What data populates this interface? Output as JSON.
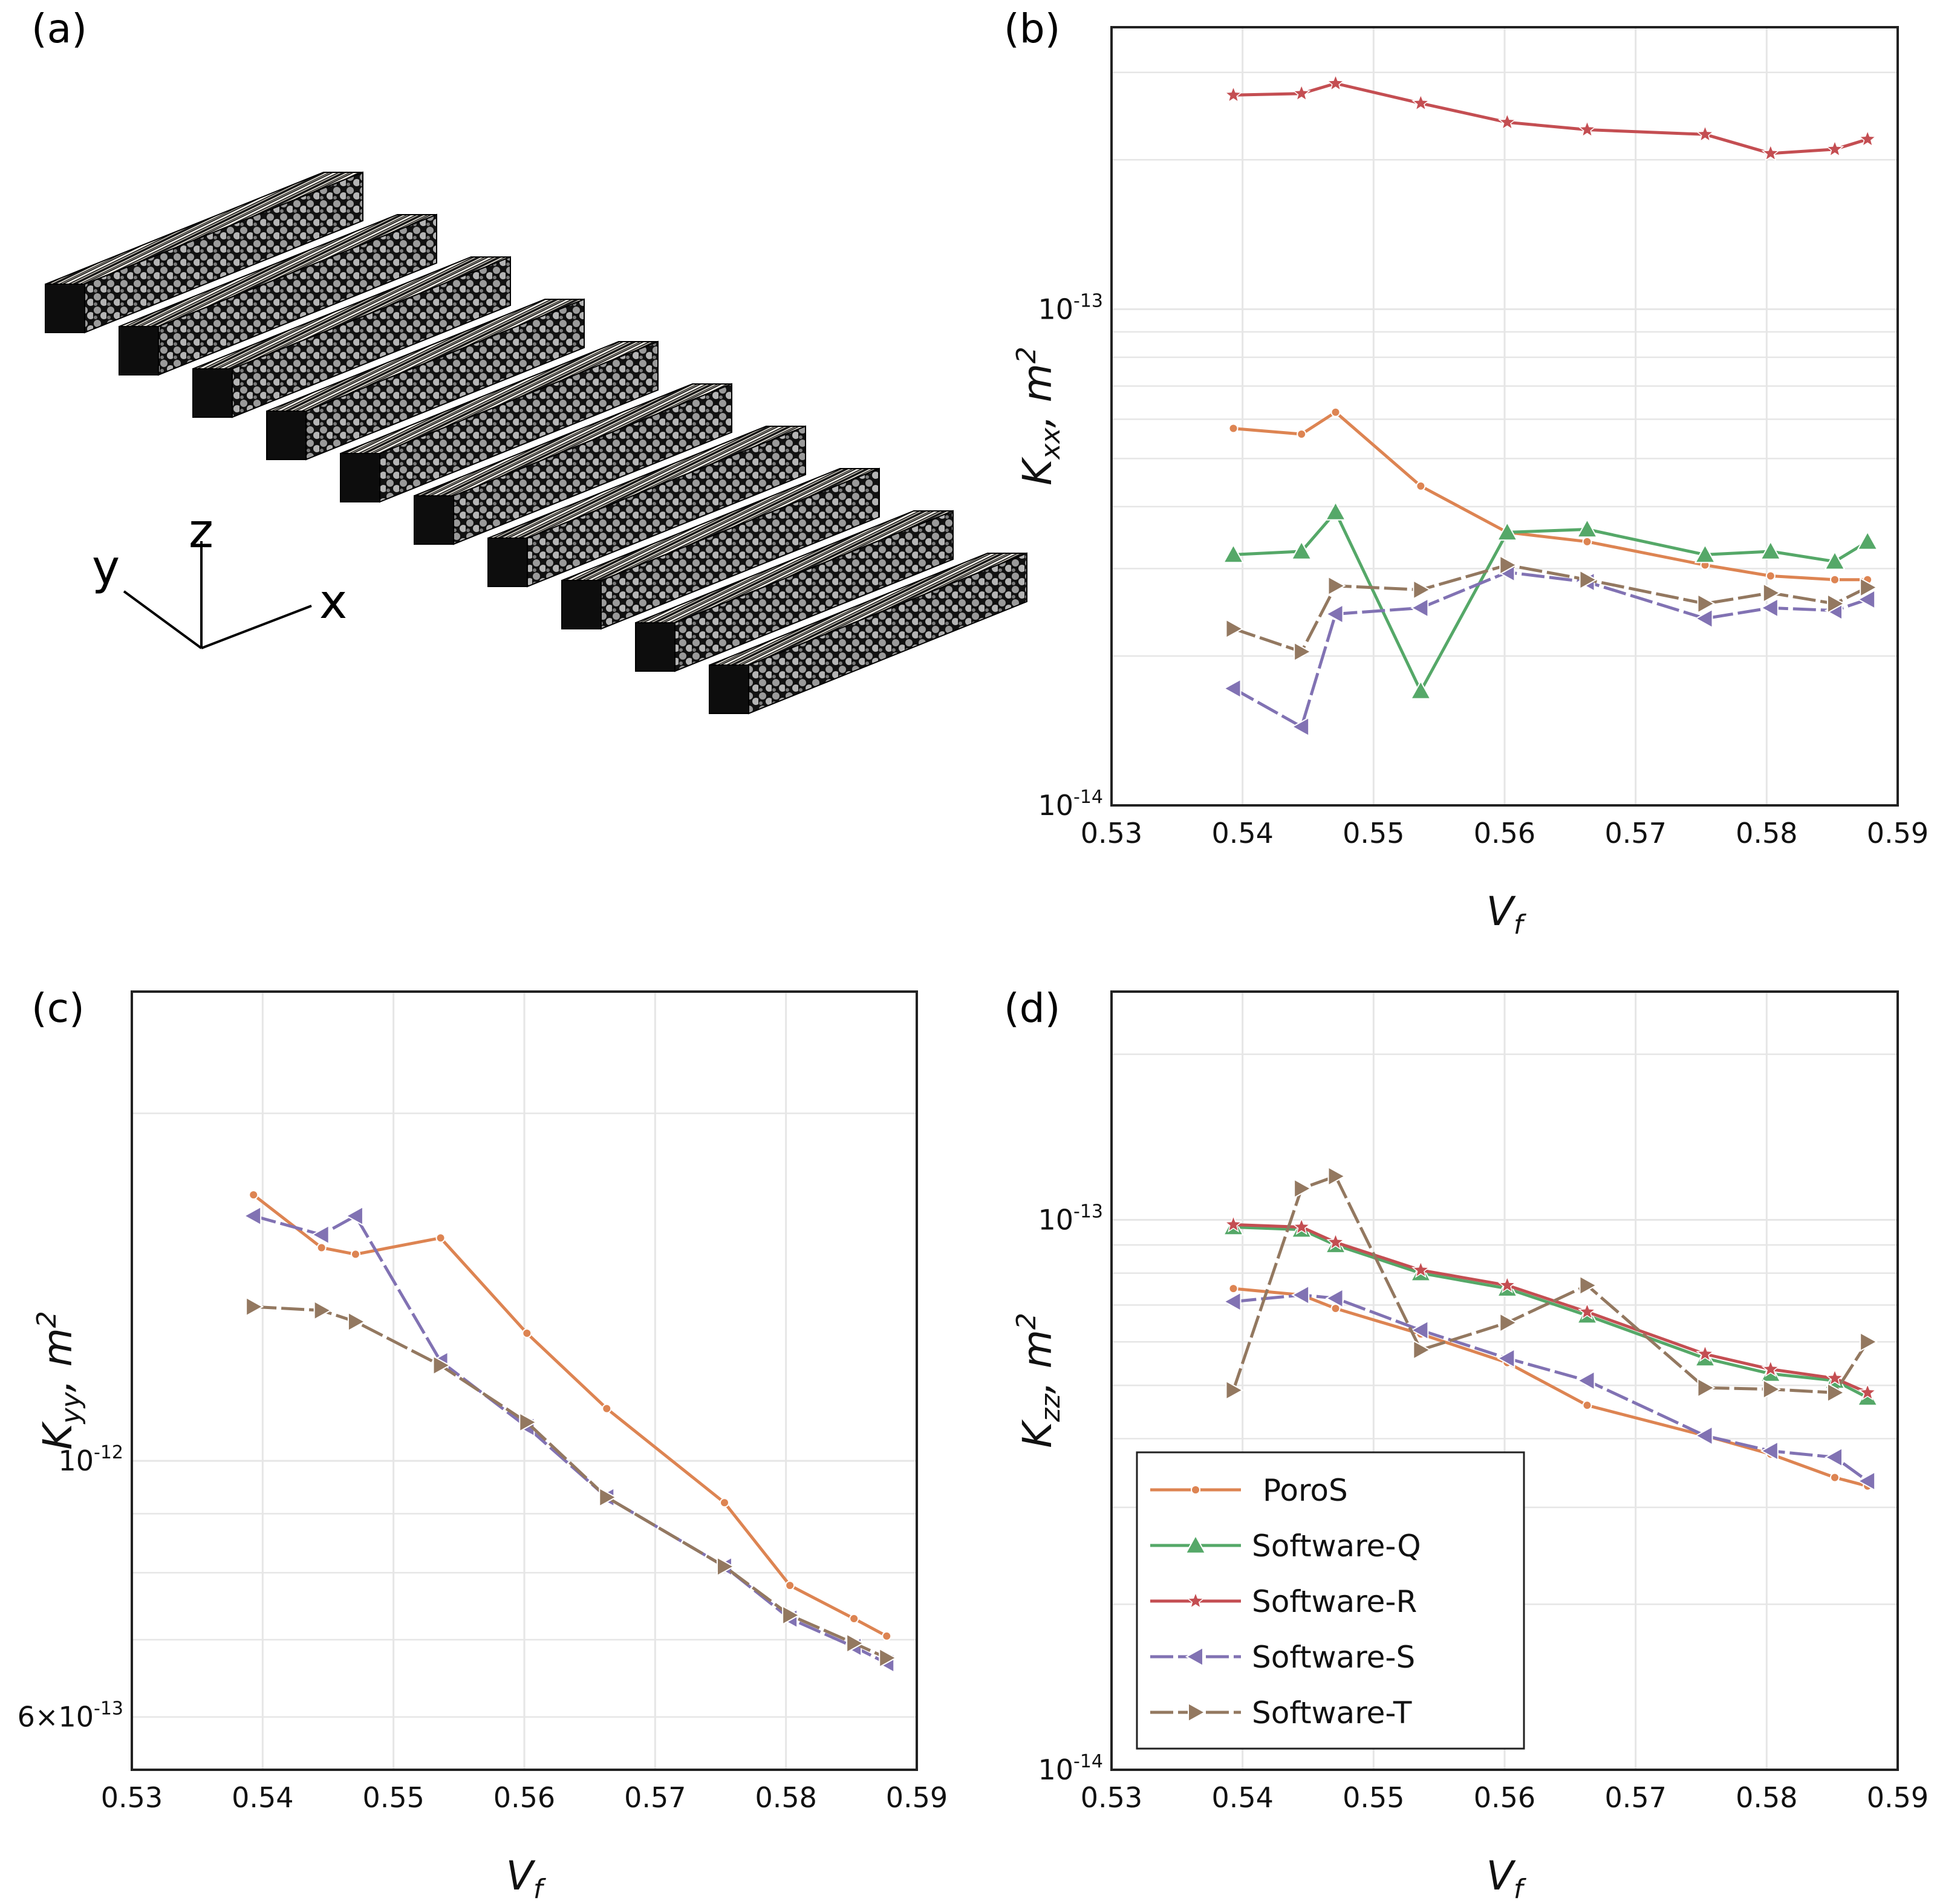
{
  "panel_labels": [
    "(a)",
    "(b)",
    "(c)",
    "(d)"
  ],
  "axis_triad": {
    "x": "x",
    "y": "y",
    "z": "z"
  },
  "colors": {
    "PoroS": "#dd8452",
    "Software-Q": "#55a868",
    "Software-R": "#c44e52",
    "Software-S": "#8172b3",
    "Software-T": "#937860",
    "grid": "#e6e6e6"
  },
  "legend": {
    "entries": [
      {
        "name": "PoroS",
        "marker": "circle"
      },
      {
        "name": "Software-Q",
        "marker": "triangle-up"
      },
      {
        "name": "Software-R",
        "marker": "star"
      },
      {
        "name": "Software-S",
        "marker": "triangle-left"
      },
      {
        "name": "Software-T",
        "marker": "triangle-right"
      }
    ]
  },
  "chart_data": [
    {
      "panel": "(b)",
      "type": "line",
      "xlabel": "V_f",
      "ylabel": "K_xx, m^2",
      "yscale": "log",
      "xlim": [
        0.53,
        0.59
      ],
      "ylim": [
        1e-14,
        3.7e-13
      ],
      "xticks": [
        "0.53",
        "0.54",
        "0.55",
        "0.56",
        "0.57",
        "0.58",
        "0.59"
      ],
      "yticks": [
        {
          "value": 1e-13,
          "label": "10^-13"
        },
        {
          "value": 1e-14,
          "label": "10^-14"
        }
      ],
      "grid": true,
      "x": [
        0.5393,
        0.5445,
        0.5471,
        0.5536,
        0.5602,
        0.5663,
        0.5753,
        0.5803,
        0.5852,
        0.5877
      ],
      "series": [
        {
          "name": "PoroS",
          "values": [
            5.75e-14,
            5.6e-14,
            6.2e-14,
            4.4e-14,
            3.55e-14,
            3.4e-14,
            3.05e-14,
            2.9e-14,
            2.85e-14,
            2.85e-14
          ]
        },
        {
          "name": "Software-Q",
          "values": [
            3.2e-14,
            3.25e-14,
            3.9e-14,
            1.7e-14,
            3.55e-14,
            3.6e-14,
            3.2e-14,
            3.25e-14,
            3.1e-14,
            3.4e-14
          ]
        },
        {
          "name": "Software-R",
          "values": [
            2.7e-13,
            2.72e-13,
            2.85e-13,
            2.6e-13,
            2.38e-13,
            2.3e-13,
            2.25e-13,
            2.06e-13,
            2.1e-13,
            2.2e-13
          ]
        },
        {
          "name": "Software-S",
          "values": [
            1.72e-14,
            1.44e-14,
            2.43e-14,
            2.5e-14,
            2.95e-14,
            2.82e-14,
            2.38e-14,
            2.5e-14,
            2.47e-14,
            2.6e-14
          ]
        },
        {
          "name": "Software-T",
          "values": [
            2.27e-14,
            2.04e-14,
            2.77e-14,
            2.72e-14,
            3.05e-14,
            2.85e-14,
            2.55e-14,
            2.68e-14,
            2.55e-14,
            2.75e-14
          ]
        }
      ]
    },
    {
      "panel": "(c)",
      "type": "line",
      "xlabel": "V_f",
      "ylabel": "K_yy, m^2",
      "yscale": "log",
      "xlim": [
        0.53,
        0.59
      ],
      "ylim": [
        5.4e-13,
        2.55e-12
      ],
      "xticks": [
        "0.53",
        "0.54",
        "0.55",
        "0.56",
        "0.57",
        "0.58",
        "0.59"
      ],
      "yticks": [
        {
          "value": 1e-12,
          "label": "10^-12"
        },
        {
          "value": 6e-13,
          "label": "6×10^-13"
        }
      ],
      "grid": true,
      "x": [
        0.5393,
        0.5445,
        0.5471,
        0.5536,
        0.5602,
        0.5663,
        0.5753,
        0.5803,
        0.5852,
        0.5877
      ],
      "series": [
        {
          "name": "PoroS",
          "values": [
            1.7e-12,
            1.53e-12,
            1.51e-12,
            1.56e-12,
            1.29e-12,
            1.11e-12,
            9.2e-13,
            7.8e-13,
            7.3e-13,
            7.05e-13
          ]
        },
        {
          "name": "Software-S",
          "values": [
            1.63e-12,
            1.57e-12,
            1.63e-12,
            1.22e-12,
            1.07e-12,
            9.3e-13,
            8.1e-13,
            7.3e-13,
            6.9e-13,
            6.68e-13
          ]
        },
        {
          "name": "Software-T",
          "values": [
            1.36e-12,
            1.35e-12,
            1.32e-12,
            1.21e-12,
            1.08e-12,
            9.3e-13,
            8.1e-13,
            7.35e-13,
            6.95e-13,
            6.75e-13
          ]
        }
      ]
    },
    {
      "panel": "(d)",
      "type": "line",
      "xlabel": "V_f",
      "ylabel": "K_zz, m^2",
      "yscale": "log",
      "xlim": [
        0.53,
        0.59
      ],
      "ylim": [
        1e-14,
        2.6e-13
      ],
      "xticks": [
        "0.53",
        "0.54",
        "0.55",
        "0.56",
        "0.57",
        "0.58",
        "0.59"
      ],
      "yticks": [
        {
          "value": 1e-13,
          "label": "10^-13"
        },
        {
          "value": 1e-14,
          "label": "10^-14"
        }
      ],
      "grid": true,
      "legend_position": "lower-left",
      "x": [
        0.5393,
        0.5445,
        0.5471,
        0.5536,
        0.5602,
        0.5663,
        0.5753,
        0.5803,
        0.5852,
        0.5877
      ],
      "series": [
        {
          "name": "PoroS",
          "values": [
            7.5e-14,
            7.3e-14,
            6.9e-14,
            6.2e-14,
            5.5e-14,
            4.6e-14,
            4.05e-14,
            3.75e-14,
            3.4e-14,
            3.28e-14
          ]
        },
        {
          "name": "Software-Q",
          "values": [
            9.7e-14,
            9.6e-14,
            9e-14,
            8e-14,
            7.5e-14,
            6.7e-14,
            5.6e-14,
            5.25e-14,
            5.1e-14,
            4.75e-14
          ]
        },
        {
          "name": "Software-R",
          "values": [
            9.8e-14,
            9.7e-14,
            9.1e-14,
            8.1e-14,
            7.6e-14,
            6.8e-14,
            5.7e-14,
            5.35e-14,
            5.15e-14,
            4.85e-14
          ]
        },
        {
          "name": "Software-S",
          "values": [
            7.1e-14,
            7.3e-14,
            7.2e-14,
            6.3e-14,
            5.6e-14,
            5.1e-14,
            4.05e-14,
            3.8e-14,
            3.7e-14,
            3.35e-14
          ]
        },
        {
          "name": "Software-T",
          "values": [
            4.9e-14,
            1.14e-13,
            1.2e-13,
            5.8e-14,
            6.5e-14,
            7.6e-14,
            4.95e-14,
            4.92e-14,
            4.85e-14,
            6e-14
          ]
        }
      ]
    }
  ]
}
